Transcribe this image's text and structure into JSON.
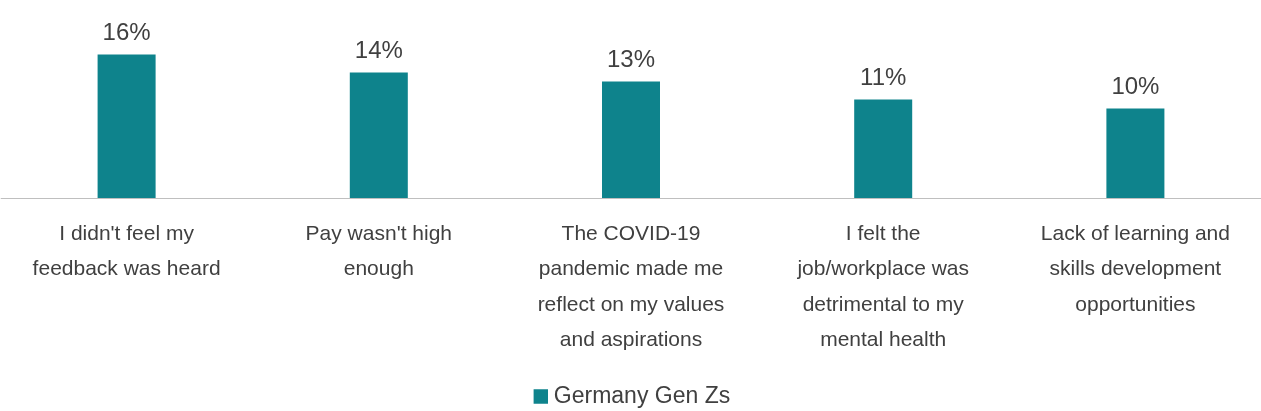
{
  "chart_data": {
    "type": "bar",
    "categories": [
      "I didn't feel my feedback was heard",
      "Pay wasn't high enough",
      "The COVID-19 pandemic made me reflect on my values and aspirations",
      "I felt the job/workplace was detrimental to my mental health",
      "Lack of learning and skills development opportunities"
    ],
    "series": [
      {
        "name": "Germany Gen Zs",
        "color": "#0e838c",
        "values": [
          16,
          14,
          13,
          11,
          10
        ],
        "value_labels": [
          "16%",
          "14%",
          "13%",
          "11%",
          "10%"
        ]
      }
    ],
    "legend": "bottom"
  }
}
